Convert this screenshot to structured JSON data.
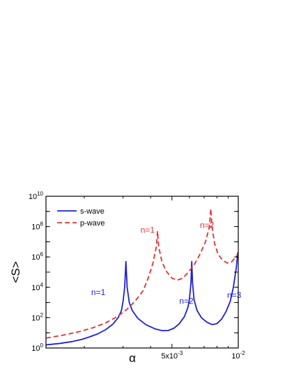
{
  "chart_data": {
    "type": "line",
    "title": "",
    "xlabel": "α",
    "ylabel": "<S>",
    "xscale": "log",
    "yscale": "log",
    "xlim": [
      0.00134,
      0.01
    ],
    "ylim": [
      1,
      10000000000
    ],
    "grid": false,
    "legend": "top-left",
    "x_tick_labels": [
      {
        "x": 0.005,
        "label": "5x10",
        "sup": "-3"
      },
      {
        "x": 0.01,
        "label": "10",
        "sup": "-2"
      }
    ],
    "y_tick_labels": [
      {
        "y": 1,
        "label": "10",
        "sup": "0"
      },
      {
        "y": 100,
        "label": "10",
        "sup": "2"
      },
      {
        "y": 10000,
        "label": "10",
        "sup": "4"
      },
      {
        "y": 1000000,
        "label": "10",
        "sup": "6"
      },
      {
        "y": 100000000,
        "label": "10",
        "sup": "8"
      },
      {
        "y": 10000000000,
        "label": "10",
        "sup": "10"
      }
    ],
    "series": [
      {
        "name": "s-wave",
        "color": "#1f1fd6",
        "dash": "solid",
        "points": [
          [
            0.00134,
            1.6
          ],
          [
            0.00155,
            2.0
          ],
          [
            0.00175,
            2.6
          ],
          [
            0.00195,
            3.7
          ],
          [
            0.0021,
            5.2
          ],
          [
            0.0023,
            8.5
          ],
          [
            0.0025,
            16
          ],
          [
            0.0027,
            38
          ],
          [
            0.00285,
            100
          ],
          [
            0.00295,
            300
          ],
          [
            0.003,
            1200
          ],
          [
            0.00305,
            10000
          ],
          [
            0.00309,
            500000
          ],
          [
            0.00313,
            10000
          ],
          [
            0.0032,
            1000
          ],
          [
            0.0033,
            300
          ],
          [
            0.0035,
            90
          ],
          [
            0.0038,
            35
          ],
          [
            0.0042,
            18
          ],
          [
            0.0045,
            14
          ],
          [
            0.0048,
            14
          ],
          [
            0.0051,
            20
          ],
          [
            0.0054,
            40
          ],
          [
            0.0057,
            120
          ],
          [
            0.0059,
            450
          ],
          [
            0.006,
            1500
          ],
          [
            0.0061,
            20000
          ],
          [
            0.00615,
            500000
          ],
          [
            0.0062,
            20000
          ],
          [
            0.0063,
            1500
          ],
          [
            0.0065,
            300
          ],
          [
            0.0068,
            100
          ],
          [
            0.0072,
            50
          ],
          [
            0.0076,
            35
          ],
          [
            0.008,
            40
          ],
          [
            0.0084,
            80
          ],
          [
            0.0088,
            250
          ],
          [
            0.0092,
            1200
          ],
          [
            0.0095,
            10000
          ],
          [
            0.0098,
            200000
          ],
          [
            0.00995,
            2000000
          ]
        ]
      },
      {
        "name": "p-wave",
        "color": "#e03030",
        "dash": "dashed",
        "points": [
          [
            0.00134,
            4.5
          ],
          [
            0.0016,
            7
          ],
          [
            0.0019,
            12
          ],
          [
            0.0022,
            22
          ],
          [
            0.0025,
            45
          ],
          [
            0.0028,
            110
          ],
          [
            0.0031,
            320
          ],
          [
            0.0034,
            1200
          ],
          [
            0.0037,
            6000
          ],
          [
            0.0039,
            40000
          ],
          [
            0.0041,
            400000
          ],
          [
            0.00425,
            5000000
          ],
          [
            0.0043,
            50000000
          ],
          [
            0.00435,
            5000000
          ],
          [
            0.0045,
            500000
          ],
          [
            0.0047,
            120000
          ],
          [
            0.005,
            40000
          ],
          [
            0.0053,
            30000
          ],
          [
            0.0056,
            40000
          ],
          [
            0.0059,
            90000
          ],
          [
            0.0063,
            300000
          ],
          [
            0.0067,
            1500000
          ],
          [
            0.0071,
            10000000
          ],
          [
            0.0074,
            100000000
          ],
          [
            0.0075,
            1500000000
          ],
          [
            0.0076,
            100000000
          ],
          [
            0.0078,
            8000000
          ],
          [
            0.0081,
            1500000
          ],
          [
            0.0085,
            600000
          ],
          [
            0.0089,
            400000
          ],
          [
            0.0093,
            450000
          ],
          [
            0.0097,
            900000
          ],
          [
            0.00995,
            1500000
          ]
        ]
      }
    ],
    "annotations": [
      {
        "text": "n=1",
        "x": 0.00215,
        "y": 3000,
        "color": "#1f1fd6"
      },
      {
        "text": "n=2",
        "x": 0.0054,
        "y": 800,
        "color": "#1f1fd6"
      },
      {
        "text": "n=3",
        "x": 0.0089,
        "y": 2000,
        "color": "#1f1fd6"
      },
      {
        "text": "n=1",
        "x": 0.0036,
        "y": 40000000,
        "color": "#e03030"
      },
      {
        "text": "n=2",
        "x": 0.0067,
        "y": 80000000,
        "color": "#e03030"
      }
    ]
  }
}
